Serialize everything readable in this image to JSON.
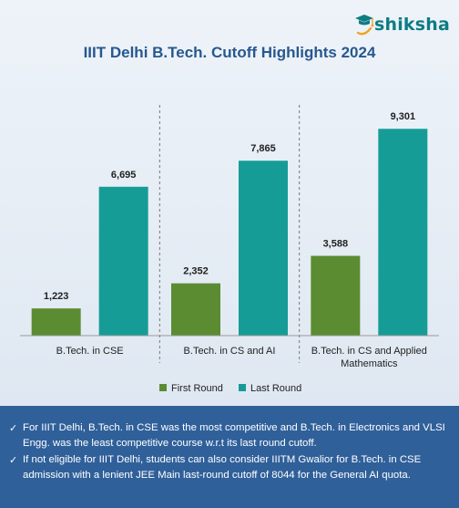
{
  "brand": {
    "name": "shiksha",
    "icon": "graduation-cap-icon",
    "color": "#0d7c83"
  },
  "chart_data": {
    "type": "bar",
    "title": "IIIT Delhi B.Tech. Cutoff Highlights 2024",
    "xlabel": "",
    "ylabel": "",
    "categories": [
      "B.Tech. in CSE",
      "B.Tech. in CS and AI",
      "B.Tech. in CS and Applied Mathematics"
    ],
    "series": [
      {
        "name": "First Round",
        "values": [
          1223,
          2352,
          3588
        ],
        "labels": [
          "1,223",
          "2,352",
          "3,588"
        ],
        "color": "#5b8c32"
      },
      {
        "name": "Last Round",
        "values": [
          6695,
          7865,
          9301
        ],
        "labels": [
          "6,695",
          "7,865",
          "9,301"
        ],
        "color": "#169c96"
      }
    ],
    "ylim": [
      0,
      10500
    ],
    "grid": false,
    "legend": "bottom"
  },
  "footer": {
    "notes": [
      "For IIIT Delhi, B.Tech. in CSE was the most competitive and B.Tech. in Electronics and VLSI Engg. was the least competitive course w.r.t its last round cutoff.",
      "If not eligible for IIIT Delhi, students can also consider IIITM Gwalior for B.Tech. in CSE admission with a lenient JEE Main last-round cutoff of 8044 for the General AI quota."
    ],
    "bullet_icon": "checkmark-icon",
    "background": "#30609a"
  }
}
